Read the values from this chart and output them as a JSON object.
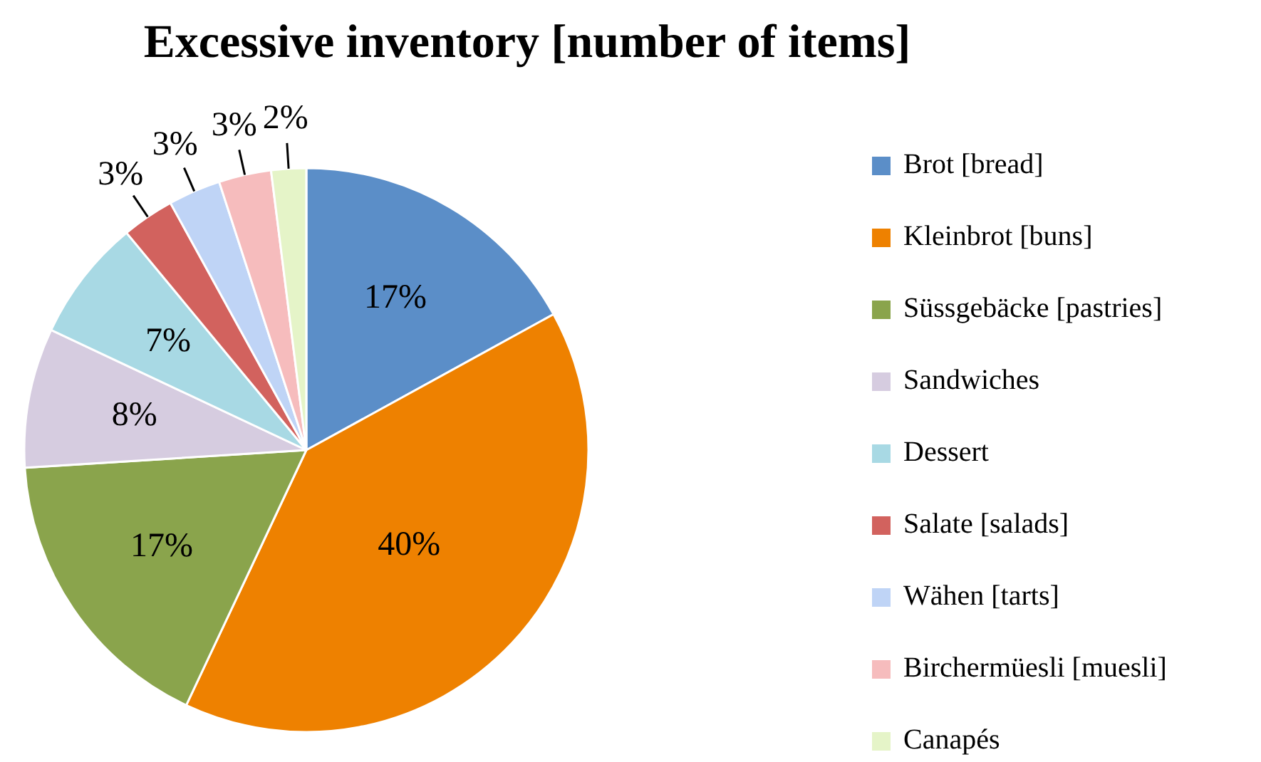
{
  "chart_data": {
    "type": "pie",
    "title": "Excessive inventory [number of items]",
    "categories": [
      "Brot [bread]",
      "Kleinbrot [buns]",
      "Süssgebäcke [pastries]",
      "Sandwiches",
      "Dessert",
      "Salate [salads]",
      "Wähen [tarts]",
      "Birchermüesli [muesli]",
      "Canapés"
    ],
    "values": [
      17,
      40,
      17,
      8,
      7,
      3,
      3,
      3,
      2
    ],
    "value_labels": [
      "17%",
      "40%",
      "17%",
      "8%",
      "7%",
      "3%",
      "3%",
      "3%",
      "2%"
    ],
    "colors": [
      "#5b8ec8",
      "#ee8100",
      "#8aa44c",
      "#d6cce0",
      "#a8d9e4",
      "#d2625e",
      "#bfd4f6",
      "#f6bcbd",
      "#e5f4c8"
    ],
    "legend": "right"
  }
}
